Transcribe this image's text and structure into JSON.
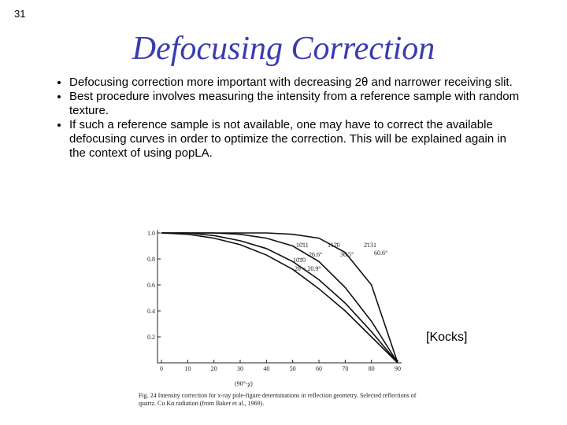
{
  "slide_number": "31",
  "title": "Defocusing Correction",
  "bullets": [
    "Defocusing correction more important with decreasing 2θ and narrower receiving slit.",
    "Best procedure involves measuring the intensity from a reference sample with random texture.",
    "If such a reference sample is not available, one may have to correct the available defocusing curves in order to optimize the correction.  This will be explained again in the context of using popLA."
  ],
  "figure": {
    "type": "line",
    "xlabel": "(90°-χ)",
    "x": [
      0,
      10,
      20,
      30,
      40,
      50,
      60,
      70,
      80,
      90
    ],
    "xlim": [
      0,
      90
    ],
    "xticks": [
      0,
      10,
      20,
      30,
      40,
      50,
      60,
      70,
      80,
      90
    ],
    "ylim": [
      0,
      1
    ],
    "yticks": [
      {
        "value": 1,
        "label": "1.0"
      },
      0.8,
      0.6,
      0.4,
      0.2
    ],
    "series": [
      {
        "name": "10̄1̄0",
        "angle": "2θ = 20.9°",
        "color": "#111",
        "values": [
          1,
          0.99,
          0.96,
          0.91,
          0.83,
          0.72,
          0.57,
          0.4,
          0.2,
          0
        ]
      },
      {
        "name": "10̄11",
        "angle": "26.6°",
        "color": "#111",
        "values": [
          1,
          1,
          0.98,
          0.94,
          0.88,
          0.78,
          0.64,
          0.46,
          0.24,
          0
        ]
      },
      {
        "name": "112̄0",
        "angle": "36.5°",
        "color": "#111",
        "values": [
          1,
          1,
          1,
          0.99,
          0.96,
          0.9,
          0.78,
          0.58,
          0.32,
          0
        ]
      },
      {
        "name": "2̄131",
        "angle": "60.6°",
        "color": "#111",
        "values": [
          1,
          1,
          1,
          1,
          1,
          0.99,
          0.96,
          0.85,
          0.6,
          0
        ]
      }
    ],
    "caption": "Fig. 24  Intensity correction for x-ray pole-figure determinations in reflection geometry.  Selected reflections of quartz.  Cu Kα radiation (from Baker et al., 1969)."
  },
  "citation": "[Kocks]"
}
